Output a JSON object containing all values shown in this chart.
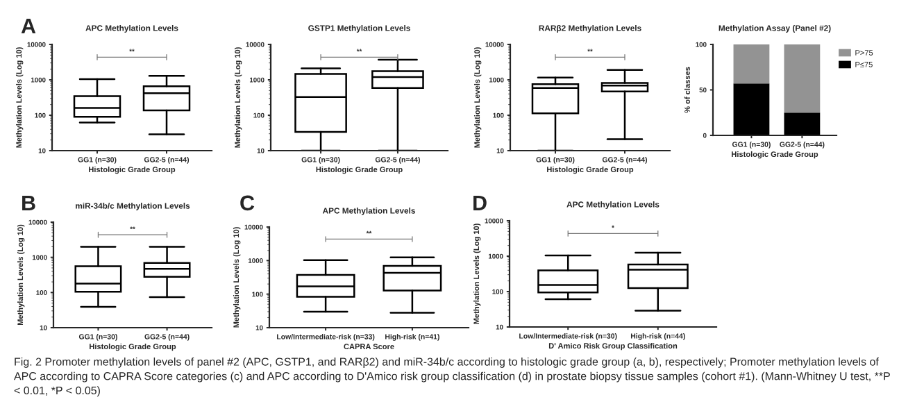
{
  "chart_data": [
    {
      "type": "box",
      "title": "APC Methylation Levels",
      "xlabel": "Histologic Grade Group",
      "ylabel": "Methylation Levels (Log 10)",
      "categories": [
        "GG1 (n=30)",
        "GG2-5 (n=44)"
      ],
      "boxes": [
        {
          "low": 62,
          "q1": 90,
          "median": 160,
          "q3": 345,
          "high": 1050
        },
        {
          "low": 29,
          "q1": 137,
          "median": 420,
          "q3": 655,
          "high": 1290
        }
      ],
      "log": true,
      "ylim": [
        10,
        10000
      ],
      "yticks": [
        10,
        100,
        1000,
        10000
      ],
      "annotations": [
        "A",
        "**",
        "Fig. 2 Promoter methylation levels of panel #2 (APC, GSTP1, and RARβ2) and miR-34b/c according to histologic grade group (a, b), respectively; Promoter methylation levels of APC according to CAPRA Score categories (c) and APC according to D'Amico risk group classification (d) in prostate biopsy tissue samples (cohort #1). (Mann-Whitney U test, **P < 0.01, *P < 0.05)"
      ]
    },
    {
      "type": "box",
      "title": "GSTP1 Methylation Levels",
      "xlabel": "Histologic Grade Group",
      "ylabel": "Methylation Levels (Log 10)",
      "categories": [
        "GG1 (n=30)",
        "GG2-5 (n=44)"
      ],
      "boxes": [
        {
          "low": 10,
          "q1": 34,
          "median": 326,
          "q3": 1460,
          "high": 2100
        },
        {
          "low": 10,
          "q1": 590,
          "median": 1200,
          "q3": 1750,
          "high": 3700
        }
      ],
      "log": true,
      "ylim": [
        10,
        10000
      ],
      "yticks": [
        10,
        100,
        1000,
        10000
      ],
      "annotations": [
        "**"
      ]
    },
    {
      "type": "box",
      "title": "RARβ2 Methylation Levels",
      "xlabel": "Histologic Grade Group",
      "ylabel": "Methylation Levels (Log 10)",
      "categories": [
        "GG1 (n=30)",
        "GG2-5 (n=44)"
      ],
      "boxes": [
        {
          "low": 10,
          "q1": 113,
          "median": 590,
          "q3": 750,
          "high": 1160
        },
        {
          "low": 21,
          "q1": 470,
          "median": 690,
          "q3": 820,
          "high": 1910
        }
      ],
      "log": true,
      "ylim": [
        10,
        10000
      ],
      "yticks": [
        10,
        100,
        1000,
        10000
      ],
      "annotations": [
        "**"
      ]
    },
    {
      "type": "bar",
      "stacked": true,
      "title": "Methylation Assay (Panel #2)",
      "xlabel": "Histologic Grade Group",
      "ylabel": "% of classes",
      "categories": [
        "GG1 (n=30)",
        "GG2-5 (n=44)"
      ],
      "series": [
        {
          "name": "P≤75",
          "color": "#000000",
          "values": [
            57,
            25
          ]
        },
        {
          "name": "P>75",
          "color": "#939393",
          "values": [
            43,
            75
          ]
        }
      ],
      "ylim": [
        0,
        100
      ],
      "yticks": [
        0,
        50,
        100
      ],
      "legend": "right"
    },
    {
      "type": "box",
      "title": "miR-34b/c Methylation Levels",
      "xlabel": "Histologic Grade Group",
      "ylabel": "Methylation Levels (Log 10)",
      "categories": [
        "GG1 (n=30)",
        "GG2-5 (n=44)"
      ],
      "boxes": [
        {
          "low": 39,
          "q1": 105,
          "median": 180,
          "q3": 555,
          "high": 2000
        },
        {
          "low": 74,
          "q1": 280,
          "median": 470,
          "q3": 695,
          "high": 2000
        }
      ],
      "log": true,
      "ylim": [
        10,
        10000
      ],
      "yticks": [
        10,
        100,
        1000,
        10000
      ],
      "annotations": [
        "B",
        "**"
      ]
    },
    {
      "type": "box",
      "title": "APC Methylation Levels",
      "xlabel": "CAPRA Score",
      "ylabel": "Methylation Levels (Log 10)",
      "categories": [
        "Low/Intermediate-risk (n=33)",
        "High-risk (n=41)"
      ],
      "boxes": [
        {
          "low": 30,
          "q1": 83,
          "median": 171,
          "q3": 373,
          "high": 1030
        },
        {
          "low": 28,
          "q1": 128,
          "median": 430,
          "q3": 690,
          "high": 1250
        }
      ],
      "log": true,
      "ylim": [
        10,
        10000
      ],
      "yticks": [
        10,
        100,
        1000,
        10000
      ],
      "annotations": [
        "C",
        "**"
      ]
    },
    {
      "type": "box",
      "title": "APC Methylation Levels",
      "xlabel": "D' Amico Risk Group Classification",
      "ylabel": "Methylation Levels (Log 10)",
      "categories": [
        "Low/Intermediate-risk (n=30)",
        "High-risk (n=44)"
      ],
      "boxes": [
        {
          "low": 61,
          "q1": 95,
          "median": 154,
          "q3": 395,
          "high": 1050
        },
        {
          "low": 29,
          "q1": 125,
          "median": 415,
          "q3": 580,
          "high": 1250
        }
      ],
      "log": true,
      "ylim": [
        10,
        10000
      ],
      "yticks": [
        10,
        100,
        1000,
        10000
      ],
      "annotations": [
        "D",
        "*"
      ]
    }
  ]
}
